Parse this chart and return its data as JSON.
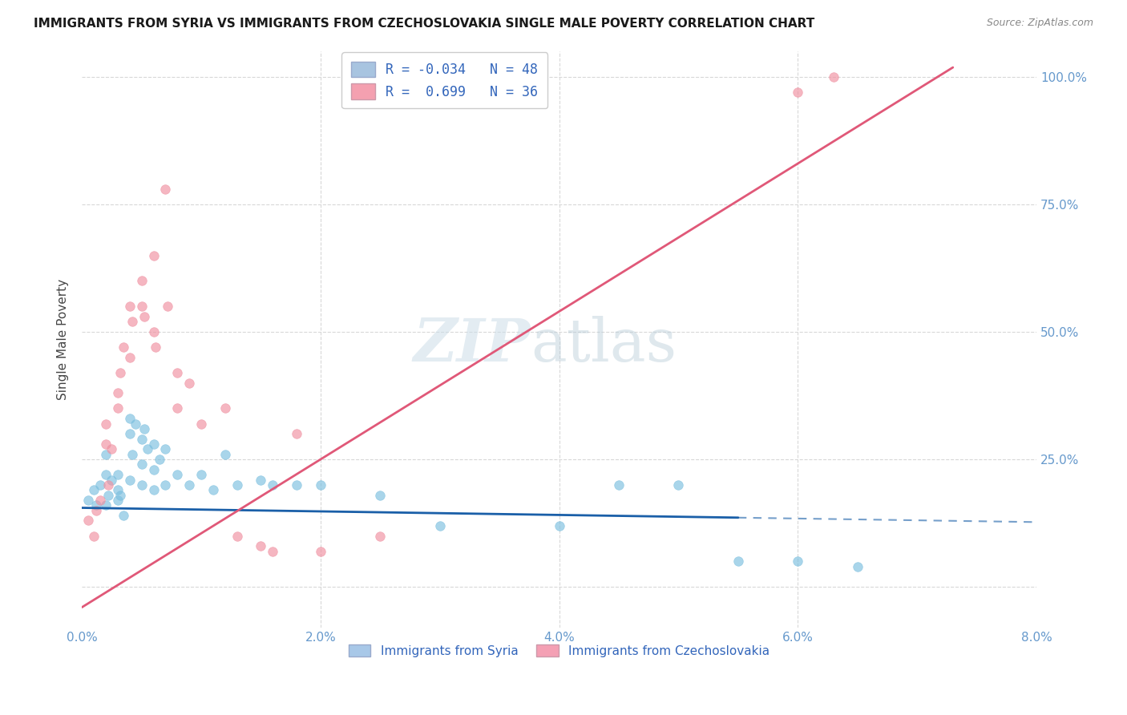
{
  "title": "IMMIGRANTS FROM SYRIA VS IMMIGRANTS FROM CZECHOSLOVAKIA SINGLE MALE POVERTY CORRELATION CHART",
  "source": "Source: ZipAtlas.com",
  "ylabel": "Single Male Poverty",
  "xlim": [
    0.0,
    0.08
  ],
  "ylim": [
    -0.08,
    1.05
  ],
  "legend_entry1": {
    "color": "#a8c4e0",
    "R": "-0.034",
    "N": "48"
  },
  "legend_entry2": {
    "color": "#f4a0b0",
    "R": "0.699",
    "N": "36"
  },
  "syria_color": "#7bbfdf",
  "czechoslovakia_color": "#f090a0",
  "syria_line_color": "#1a5fa8",
  "czechoslovakia_line_color": "#e05878",
  "syria_line_intercept": 0.155,
  "syria_line_slope": -0.35,
  "czecho_line_intercept": -0.04,
  "czecho_line_slope": 14.5,
  "syria_scatter": [
    [
      0.0005,
      0.17
    ],
    [
      0.001,
      0.19
    ],
    [
      0.0012,
      0.16
    ],
    [
      0.0015,
      0.2
    ],
    [
      0.002,
      0.16
    ],
    [
      0.002,
      0.22
    ],
    [
      0.002,
      0.26
    ],
    [
      0.0022,
      0.18
    ],
    [
      0.0025,
      0.21
    ],
    [
      0.003,
      0.17
    ],
    [
      0.003,
      0.19
    ],
    [
      0.003,
      0.22
    ],
    [
      0.0032,
      0.18
    ],
    [
      0.0035,
      0.14
    ],
    [
      0.004,
      0.3
    ],
    [
      0.004,
      0.33
    ],
    [
      0.004,
      0.21
    ],
    [
      0.0042,
      0.26
    ],
    [
      0.0045,
      0.32
    ],
    [
      0.005,
      0.29
    ],
    [
      0.005,
      0.24
    ],
    [
      0.005,
      0.2
    ],
    [
      0.0052,
      0.31
    ],
    [
      0.0055,
      0.27
    ],
    [
      0.006,
      0.23
    ],
    [
      0.006,
      0.19
    ],
    [
      0.006,
      0.28
    ],
    [
      0.0065,
      0.25
    ],
    [
      0.007,
      0.2
    ],
    [
      0.007,
      0.27
    ],
    [
      0.008,
      0.22
    ],
    [
      0.009,
      0.2
    ],
    [
      0.01,
      0.22
    ],
    [
      0.011,
      0.19
    ],
    [
      0.012,
      0.26
    ],
    [
      0.013,
      0.2
    ],
    [
      0.015,
      0.21
    ],
    [
      0.016,
      0.2
    ],
    [
      0.018,
      0.2
    ],
    [
      0.02,
      0.2
    ],
    [
      0.025,
      0.18
    ],
    [
      0.03,
      0.12
    ],
    [
      0.04,
      0.12
    ],
    [
      0.045,
      0.2
    ],
    [
      0.05,
      0.2
    ],
    [
      0.055,
      0.05
    ],
    [
      0.06,
      0.05
    ],
    [
      0.065,
      0.04
    ]
  ],
  "czechoslovakia_scatter": [
    [
      0.0005,
      0.13
    ],
    [
      0.001,
      0.1
    ],
    [
      0.0012,
      0.15
    ],
    [
      0.0015,
      0.17
    ],
    [
      0.002,
      0.28
    ],
    [
      0.002,
      0.32
    ],
    [
      0.0022,
      0.2
    ],
    [
      0.0025,
      0.27
    ],
    [
      0.003,
      0.35
    ],
    [
      0.003,
      0.38
    ],
    [
      0.0032,
      0.42
    ],
    [
      0.0035,
      0.47
    ],
    [
      0.004,
      0.45
    ],
    [
      0.004,
      0.55
    ],
    [
      0.0042,
      0.52
    ],
    [
      0.005,
      0.6
    ],
    [
      0.005,
      0.55
    ],
    [
      0.0052,
      0.53
    ],
    [
      0.006,
      0.65
    ],
    [
      0.006,
      0.5
    ],
    [
      0.0062,
      0.47
    ],
    [
      0.007,
      0.78
    ],
    [
      0.0072,
      0.55
    ],
    [
      0.008,
      0.42
    ],
    [
      0.008,
      0.35
    ],
    [
      0.009,
      0.4
    ],
    [
      0.01,
      0.32
    ],
    [
      0.012,
      0.35
    ],
    [
      0.013,
      0.1
    ],
    [
      0.015,
      0.08
    ],
    [
      0.016,
      0.07
    ],
    [
      0.018,
      0.3
    ],
    [
      0.02,
      0.07
    ],
    [
      0.025,
      0.1
    ],
    [
      0.06,
      0.97
    ],
    [
      0.063,
      1.0
    ]
  ],
  "background_color": "#ffffff",
  "grid_color": "#d8d8d8"
}
